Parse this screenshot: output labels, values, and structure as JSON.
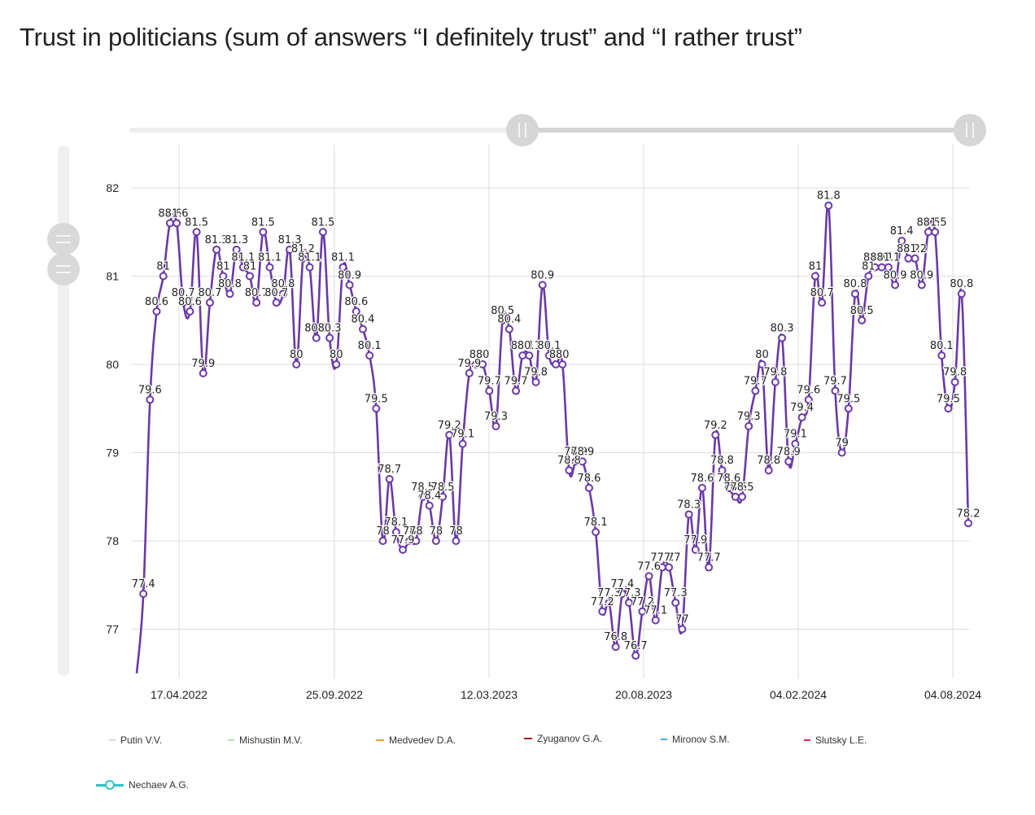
{
  "title": "Trust in politicians (sum of answers “I definitely trust” and “I rather trust”",
  "colors": {
    "series": "#6a3aa6",
    "grid": "#dedede",
    "axis_text": "#222",
    "slider": "#d6d6d6"
  },
  "legend": [
    {
      "label": "Putin V.V.",
      "color": "#cfcfcf"
    },
    {
      "label": "Mishustin M.V.",
      "color": "#9ad19a"
    },
    {
      "label": "Medvedev D.A.",
      "color": "#f0a030"
    },
    {
      "label": "Zyuganov G.A.",
      "color": "#a02020"
    },
    {
      "label": "Mironov S.M.",
      "color": "#40b0e0"
    },
    {
      "label": "Slutsky L.E.",
      "color": "#e02060"
    },
    {
      "label": "Nechaev A.G.",
      "color": "#2ec4c4"
    }
  ],
  "chart_data": {
    "type": "line",
    "title": "Trust in politicians (sum of answers “I definitely trust” and “I rather trust”",
    "xlabel": "",
    "ylabel": "",
    "ylim": [
      76.5,
      82.2
    ],
    "yticks": [
      77,
      78,
      79,
      80,
      81,
      82
    ],
    "xticks": [
      "17.04.2022",
      "25.09.2022",
      "12.03.2023",
      "20.08.2023",
      "04.02.2024",
      "04.08.2024"
    ],
    "grid": true,
    "legend_position": "bottom",
    "series": [
      {
        "name": "Nechaev A.G.",
        "values": [
          76.5,
          77.4,
          79.6,
          80.6,
          81,
          81.6,
          81.6,
          80.7,
          80.6,
          81.5,
          79.9,
          80.7,
          81.3,
          81,
          80.8,
          81.3,
          81.1,
          81,
          80.7,
          81.5,
          81.1,
          80.7,
          80.8,
          81.3,
          80,
          81.2,
          81.1,
          80.3,
          81.5,
          80.3,
          80,
          81.1,
          80.9,
          80.6,
          80.4,
          80.1,
          79.5,
          78,
          78.7,
          78.1,
          77.9,
          78,
          78,
          78.5,
          78.4,
          78,
          78.5,
          79.2,
          78,
          79.1,
          79.9,
          80,
          80,
          79.7,
          79.3,
          80.5,
          80.4,
          79.7,
          80.1,
          80.1,
          79.8,
          80.9,
          80.1,
          80,
          80,
          78.8,
          78.9,
          78.9,
          78.6,
          78.1,
          77.2,
          77.3,
          76.8,
          77.4,
          77.3,
          76.7,
          77.2,
          77.6,
          77.1,
          77.7,
          77.7,
          77.3,
          77,
          78.3,
          77.9,
          78.6,
          77.7,
          79.2,
          78.8,
          78.6,
          78.5,
          78.5,
          79.3,
          79.7,
          80,
          78.8,
          79.8,
          80.3,
          78.9,
          79.1,
          79.4,
          79.6,
          81,
          80.7,
          81.8,
          79.7,
          79,
          79.5,
          80.8,
          80.5,
          81,
          81.1,
          81.1,
          81.1,
          80.9,
          81.4,
          81.2,
          81.2,
          80.9,
          81.5,
          81.5,
          80.1,
          79.5,
          79.8,
          80.8,
          78.2
        ]
      }
    ]
  }
}
